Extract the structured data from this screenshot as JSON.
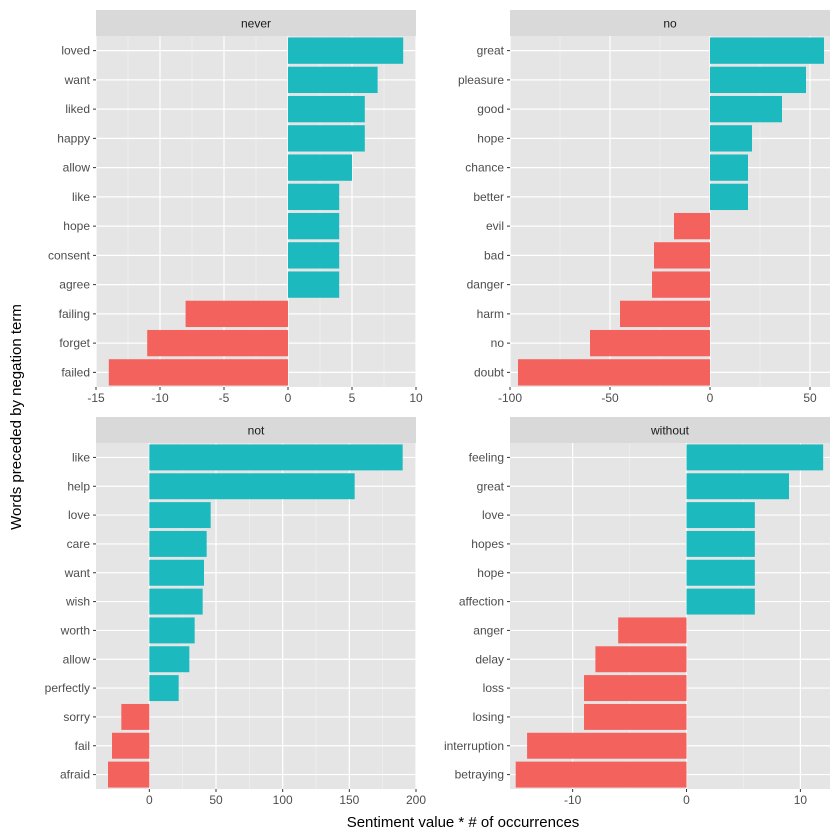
{
  "chart_data": {
    "type": "bar",
    "orientation": "horizontal",
    "facet_layout": "2x2",
    "xlabel": "Sentiment value * # of occurrences",
    "ylabel": "Words preceded by negation term",
    "colors": {
      "positive": "#1cb9be",
      "negative": "#f4625e",
      "panel_bg": "#e5e5e5",
      "strip_bg": "#d9d9d9"
    },
    "grid": true,
    "legend": "none",
    "panels": [
      {
        "title": "never",
        "xlim": [
          -15,
          10
        ],
        "xticks": [
          -15,
          -10,
          -5,
          0,
          5,
          10
        ],
        "xtick_labels": [
          "-15",
          "-10",
          "-5",
          "0",
          "5",
          "10"
        ],
        "categories": [
          "loved",
          "want",
          "liked",
          "happy",
          "allow",
          "like",
          "hope",
          "consent",
          "agree",
          "failing",
          "forget",
          "failed"
        ],
        "values": [
          9,
          7,
          6,
          6,
          5,
          4,
          4,
          4,
          4,
          -8,
          -11,
          -14
        ]
      },
      {
        "title": "no",
        "xlim": [
          -100,
          60
        ],
        "xticks": [
          -100,
          -50,
          0,
          50
        ],
        "xtick_labels": [
          "-100",
          "-50",
          "0",
          "50"
        ],
        "categories": [
          "great",
          "pleasure",
          "good",
          "hope",
          "chance",
          "better",
          "evil",
          "bad",
          "danger",
          "harm",
          "no",
          "doubt"
        ],
        "values": [
          57,
          48,
          36,
          21,
          19,
          19,
          -18,
          -28,
          -29,
          -45,
          -60,
          -96
        ]
      },
      {
        "title": "not",
        "xlim": [
          -40,
          200
        ],
        "xticks": [
          0,
          50,
          100,
          150,
          200
        ],
        "xtick_labels": [
          "0",
          "50",
          "100",
          "150",
          "200"
        ],
        "categories": [
          "like",
          "help",
          "love",
          "care",
          "want",
          "wish",
          "worth",
          "allow",
          "perfectly",
          "sorry",
          "fail",
          "afraid"
        ],
        "values": [
          190,
          154,
          46,
          43,
          41,
          40,
          34,
          30,
          22,
          -21,
          -28,
          -31
        ]
      },
      {
        "title": "without",
        "xlim": [
          -15.5,
          12.6
        ],
        "xticks": [
          -10,
          0,
          10
        ],
        "xtick_labels": [
          "-10",
          "0",
          "10"
        ],
        "categories": [
          "feeling",
          "great",
          "love",
          "hopes",
          "hope",
          "affection",
          "anger",
          "delay",
          "loss",
          "losing",
          "interruption",
          "betraying"
        ],
        "values": [
          12,
          9,
          6,
          6,
          6,
          6,
          -6,
          -8,
          -9,
          -9,
          -14,
          -15
        ]
      }
    ]
  }
}
